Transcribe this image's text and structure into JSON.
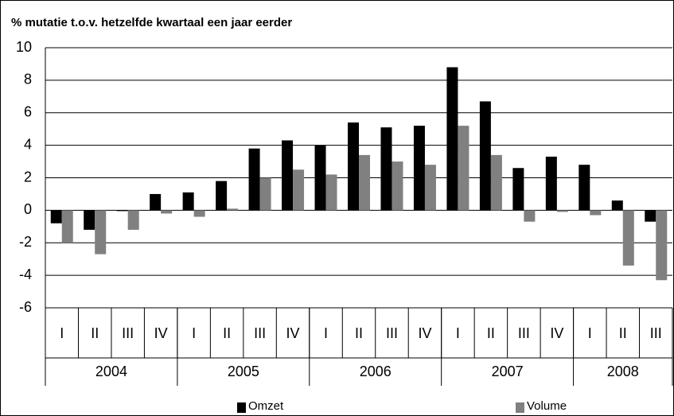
{
  "chart_data": {
    "type": "bar",
    "ylabel": "% mutatie t.o.v. hetzelfde kwartaal een jaar eerder",
    "categories": [
      {
        "quarter": "I",
        "year": "2004"
      },
      {
        "quarter": "II",
        "year": "2004"
      },
      {
        "quarter": "III",
        "year": "2004"
      },
      {
        "quarter": "IV",
        "year": "2004"
      },
      {
        "quarter": "I",
        "year": "2005"
      },
      {
        "quarter": "II",
        "year": "2005"
      },
      {
        "quarter": "III",
        "year": "2005"
      },
      {
        "quarter": "IV",
        "year": "2005"
      },
      {
        "quarter": "I",
        "year": "2006"
      },
      {
        "quarter": "II",
        "year": "2006"
      },
      {
        "quarter": "III",
        "year": "2006"
      },
      {
        "quarter": "IV",
        "year": "2006"
      },
      {
        "quarter": "I",
        "year": "2007"
      },
      {
        "quarter": "II",
        "year": "2007"
      },
      {
        "quarter": "III",
        "year": "2007"
      },
      {
        "quarter": "IV",
        "year": "2007"
      },
      {
        "quarter": "I",
        "year": "2008"
      },
      {
        "quarter": "II",
        "year": "2008"
      },
      {
        "quarter": "III",
        "year": "2008"
      }
    ],
    "series": [
      {
        "name": "Omzet",
        "color": "#000000",
        "values": [
          -0.8,
          -1.2,
          -0.05,
          1.0,
          1.1,
          1.8,
          3.8,
          4.3,
          4.0,
          5.4,
          5.1,
          5.2,
          8.8,
          6.7,
          2.6,
          3.3,
          2.8,
          0.6,
          -0.7
        ]
      },
      {
        "name": "Volume",
        "color": "#808080",
        "values": [
          -2.0,
          -2.7,
          -1.2,
          -0.2,
          -0.4,
          0.1,
          2.0,
          2.5,
          2.2,
          3.4,
          3.0,
          2.8,
          5.2,
          3.4,
          -0.7,
          -0.1,
          -0.3,
          -3.4,
          -4.3
        ]
      }
    ],
    "ylim": [
      -6,
      10
    ],
    "yticks": [
      -6,
      -4,
      -2,
      0,
      2,
      4,
      6,
      8,
      10
    ],
    "grid": true,
    "legend": "bottom"
  }
}
